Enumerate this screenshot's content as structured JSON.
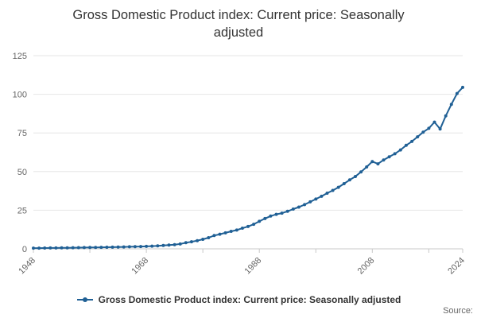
{
  "page": {
    "title": "Gross Domestic Product index: Current price: Seasonally adjusted",
    "source_label": "Source:"
  },
  "legend": {
    "items": [
      {
        "label": "Gross Domestic Product index: Current price: Seasonally adjusted",
        "color": "#206095"
      }
    ]
  },
  "style": {
    "series_color": "#206095",
    "grid_color": "#e6e6e6",
    "axis_color": "#c8c8c8",
    "tick_label_color": "#666666",
    "title_color": "#333333"
  },
  "chart_data": {
    "type": "line",
    "title": "Gross Domestic Product index: Current price: Seasonally adjusted",
    "xlabel": "",
    "ylabel": "",
    "grid": true,
    "legend_position": "bottom",
    "marker": "circle",
    "ylim": [
      0,
      125
    ],
    "yticks": [
      0,
      25,
      50,
      75,
      100,
      125
    ],
    "xticks": [
      1948,
      1958,
      1968,
      1978,
      1988,
      1998,
      2008,
      2018,
      2024
    ],
    "xtick_labels": [
      1948,
      1968,
      1988,
      2008,
      2024
    ],
    "x": [
      1948,
      1949,
      1950,
      1951,
      1952,
      1953,
      1954,
      1955,
      1956,
      1957,
      1958,
      1959,
      1960,
      1961,
      1962,
      1963,
      1964,
      1965,
      1966,
      1967,
      1968,
      1969,
      1970,
      1971,
      1972,
      1973,
      1974,
      1975,
      1976,
      1977,
      1978,
      1979,
      1980,
      1981,
      1982,
      1983,
      1984,
      1985,
      1986,
      1987,
      1988,
      1989,
      1990,
      1991,
      1992,
      1993,
      1994,
      1995,
      1996,
      1997,
      1998,
      1999,
      2000,
      2001,
      2002,
      2003,
      2004,
      2005,
      2006,
      2007,
      2008,
      2009,
      2010,
      2011,
      2012,
      2013,
      2014,
      2015,
      2016,
      2017,
      2018,
      2019,
      2020,
      2021,
      2022,
      2023,
      2024
    ],
    "series": [
      {
        "name": "Gross Domestic Product index: Current price: Seasonally adjusted",
        "color": "#206095",
        "values": [
          0.45,
          0.47,
          0.5,
          0.55,
          0.59,
          0.63,
          0.67,
          0.72,
          0.78,
          0.82,
          0.86,
          0.91,
          0.97,
          1.03,
          1.08,
          1.15,
          1.25,
          1.34,
          1.43,
          1.5,
          1.62,
          1.74,
          1.92,
          2.15,
          2.4,
          2.75,
          3.15,
          3.95,
          4.6,
          5.3,
          6.15,
          7.2,
          8.6,
          9.45,
          10.35,
          11.3,
          12.15,
          13.4,
          14.45,
          15.9,
          17.8,
          19.6,
          21.2,
          22.3,
          23.1,
          24.3,
          25.7,
          27.0,
          28.6,
          30.4,
          32.2,
          34.0,
          36.0,
          37.8,
          39.8,
          42.2,
          44.6,
          46.8,
          49.8,
          53.0,
          56.5,
          55.0,
          57.5,
          59.5,
          61.5,
          64.0,
          67.0,
          69.5,
          72.5,
          75.5,
          78.0,
          82.0,
          77.5,
          86.0,
          93.5,
          100.5,
          104.5
        ]
      }
    ]
  }
}
